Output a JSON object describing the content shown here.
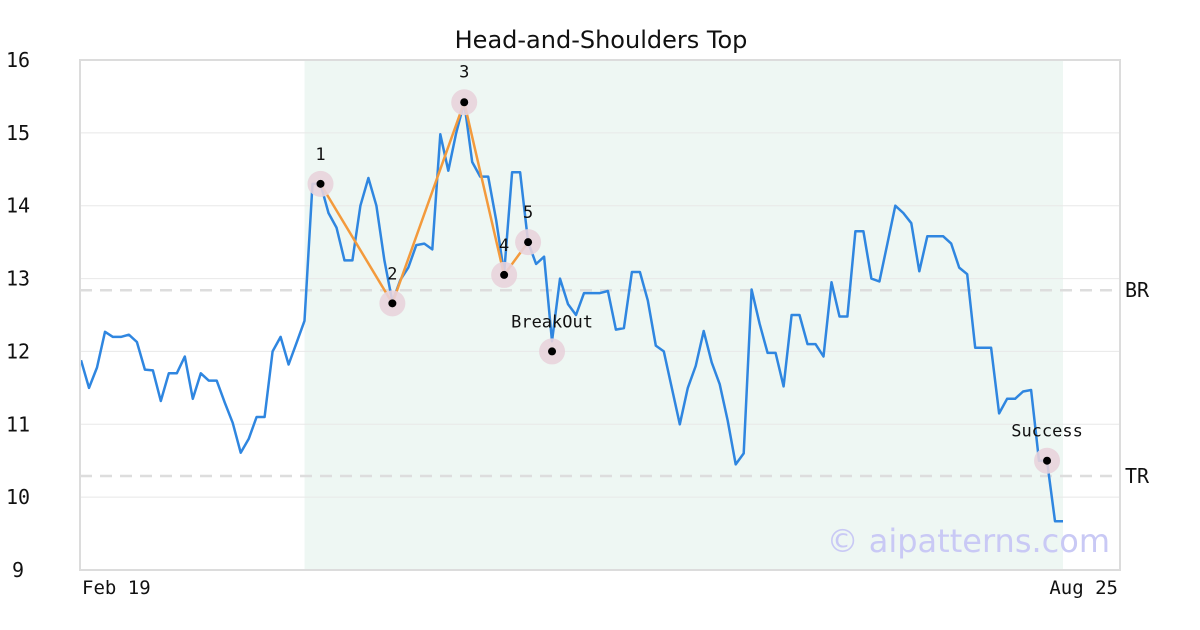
{
  "chart_data": {
    "type": "line",
    "title": "Head-and-Shoulders Top",
    "xlabel": "",
    "ylabel": "",
    "ylim": [
      9,
      16
    ],
    "yticks": [
      9,
      10,
      11,
      12,
      13,
      14,
      15,
      16
    ],
    "x_start_label": "Feb 19",
    "x_end_label": "Aug 25",
    "grid": true,
    "colors": {
      "line": "#2f86e0",
      "pattern": "#f39a3c",
      "shade": "#eef7f3",
      "level": "#dddddd",
      "marker_halo": "#e8d3dc"
    },
    "series": [
      {
        "values": [
          11.88,
          11.5,
          11.78,
          12.27,
          12.2,
          12.2,
          12.23,
          12.13,
          11.75,
          11.74,
          11.32,
          11.7,
          11.7,
          11.93,
          11.35,
          11.7,
          11.6,
          11.6,
          11.3,
          11.02,
          10.61,
          10.8,
          11.1,
          11.1,
          12.0,
          12.2,
          11.82,
          12.12,
          12.42,
          14.3,
          14.3,
          13.9,
          13.7,
          13.25,
          13.25,
          14.0,
          14.38,
          14.0,
          13.25,
          12.68,
          12.98,
          13.15,
          13.46,
          13.48,
          13.4,
          14.98,
          14.48,
          15.0,
          15.42,
          14.6,
          14.4,
          14.4,
          13.8,
          13.07,
          14.46,
          14.46,
          13.5,
          13.2,
          13.3,
          12.14,
          13.0,
          12.65,
          12.5,
          12.8,
          12.8,
          12.8,
          12.83,
          12.3,
          12.32,
          13.09,
          13.09,
          12.7,
          12.08,
          12.0,
          11.5,
          11.0,
          11.5,
          11.8,
          12.28,
          11.85,
          11.55,
          11.05,
          10.45,
          10.6,
          12.85,
          12.38,
          11.98,
          11.98,
          11.52,
          12.5,
          12.5,
          12.1,
          12.1,
          11.93,
          12.95,
          12.48,
          12.48,
          13.65,
          13.65,
          13.0,
          12.96,
          13.48,
          14.0,
          13.9,
          13.76,
          13.1,
          13.58,
          13.58,
          13.58,
          13.48,
          13.15,
          13.06,
          12.05,
          12.05,
          12.05,
          11.15,
          11.35,
          11.35,
          11.45,
          11.47,
          10.5,
          10.5,
          9.67,
          9.67
        ]
      }
    ],
    "shaded_index_range": [
      28,
      123
    ],
    "levels": [
      {
        "label": "BR",
        "value": 12.84
      },
      {
        "label": "TR",
        "value": 10.29
      }
    ],
    "pattern_points": [
      {
        "label": "1",
        "index": 30,
        "value": 14.3
      },
      {
        "label": "2",
        "index": 39,
        "value": 12.66
      },
      {
        "label": "3",
        "index": 48,
        "value": 15.42
      },
      {
        "label": "4",
        "index": 53,
        "value": 13.05
      },
      {
        "label": "5",
        "index": 56,
        "value": 13.5
      }
    ],
    "annotations": [
      {
        "label": "BreakOut",
        "index": 59,
        "value": 12.0
      },
      {
        "label": "Success",
        "index": 121,
        "value": 10.5
      }
    ],
    "watermark": "© aipatterns.com"
  }
}
